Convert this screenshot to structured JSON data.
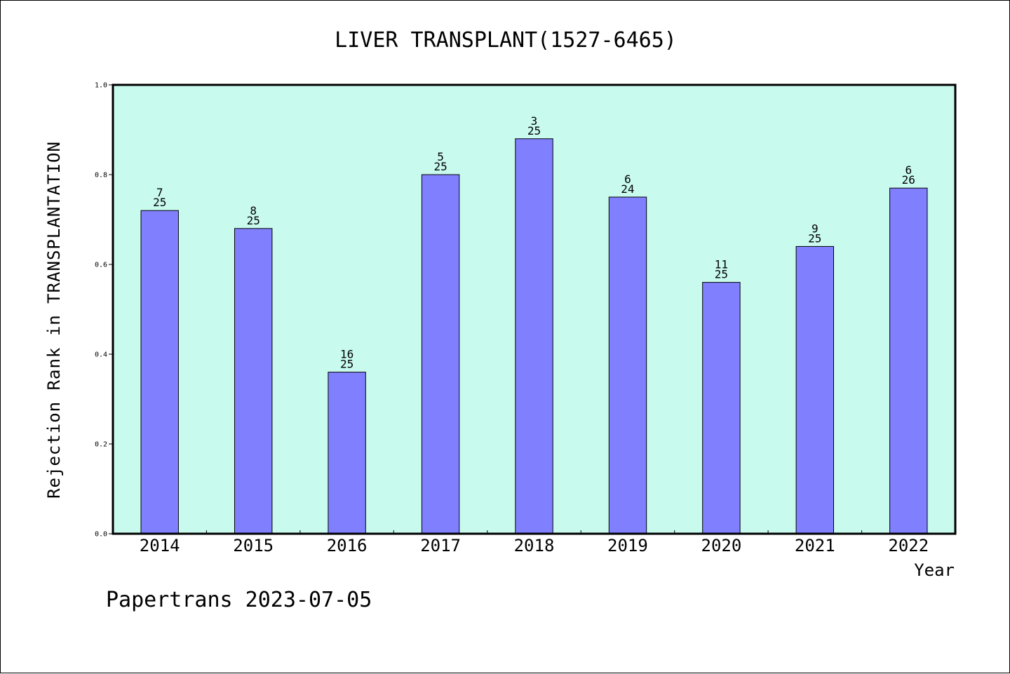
{
  "chart_data": {
    "type": "bar",
    "title": "LIVER TRANSPLANT(1527-6465)",
    "xlabel": "Year",
    "ylabel": "Rejection Rank in TRANSPLANTATION",
    "categories": [
      "2014",
      "2015",
      "2016",
      "2017",
      "2018",
      "2019",
      "2020",
      "2021",
      "2022"
    ],
    "values": [
      0.72,
      0.68,
      0.36,
      0.8,
      0.88,
      0.75,
      0.56,
      0.64,
      0.77
    ],
    "labels_rank": [
      "7",
      "8",
      "16",
      "5",
      "3",
      "6",
      "11",
      "9",
      "6"
    ],
    "labels_total": [
      "25",
      "25",
      "25",
      "25",
      "25",
      "24",
      "25",
      "25",
      "26"
    ],
    "ylim": [
      0,
      1.0
    ],
    "yticks": [
      "0.0",
      "0.2",
      "0.4",
      "0.6",
      "0.8",
      "1.0"
    ],
    "grid": false,
    "colors": {
      "plot_background": "#c8faee",
      "bar_fill": "#8080ff",
      "bar_edge": "#000000"
    }
  },
  "footer": "Papertrans 2023-07-05"
}
